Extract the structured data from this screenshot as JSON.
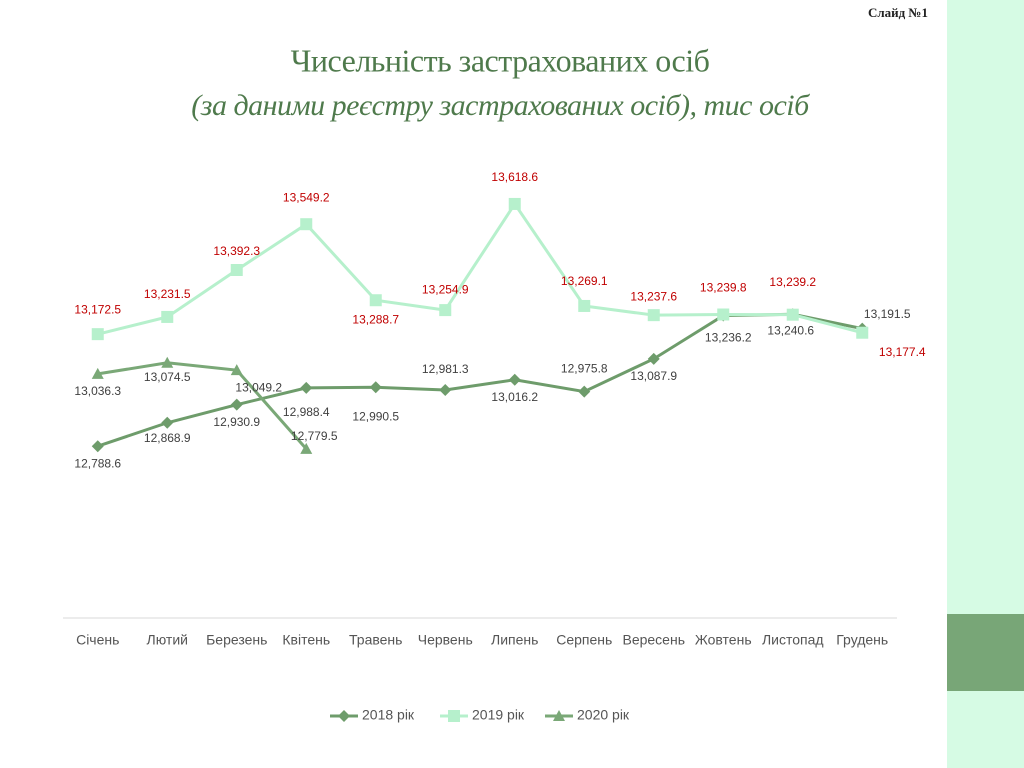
{
  "slide_label": "Слайд №1",
  "chart_data": {
    "type": "line",
    "title": "Чисельність застрахованих осіб",
    "subtitle": "(за даними реєстру застрахованих осіб), тис осіб",
    "categories": [
      "Січень",
      "Лютий",
      "Березень",
      "Квітень",
      "Травень",
      "Червень",
      "Липень",
      "Серпень",
      "Вересень",
      "Жовтень",
      "Листопад",
      "Грудень"
    ],
    "ylim": [
      12200,
      13800
    ],
    "series": [
      {
        "name": "2018 рік",
        "color": "#6e9c6b",
        "marker": "diamond",
        "label_color": "#404040",
        "values": [
          12788.6,
          12868.9,
          12930.9,
          12988.4,
          12990.5,
          12981.3,
          13016.2,
          12975.8,
          13087.9,
          13236.2,
          13240.6,
          13191.5
        ],
        "value_labels": [
          "12,788.6",
          "12,868.9",
          "12,930.9",
          "12,988.4",
          "12,990.5",
          "12,981.3",
          "13,016.2",
          "12,975.8",
          "13,087.9",
          "13,236.2",
          "13,240.6",
          "13,191.5"
        ]
      },
      {
        "name": "2019 рік",
        "color": "#b6f0cc",
        "marker": "square",
        "label_color": "#c00000",
        "values": [
          13172.5,
          13231.5,
          13392.3,
          13549.2,
          13288.7,
          13254.9,
          13618.6,
          13269.1,
          13237.6,
          13239.8,
          13239.2,
          13177.4
        ],
        "value_labels": [
          "13,172.5",
          "13,231.5",
          "13,392.3",
          "13,549.2",
          "13,288.7",
          "13,254.9",
          "13,618.6",
          "13,269.1",
          "13,237.6",
          "13,239.8",
          "13,239.2",
          "13,177.4"
        ]
      },
      {
        "name": "2020 рік",
        "color": "#7aa877",
        "marker": "triangle",
        "label_color": "#404040",
        "values": [
          13036.3,
          13074.5,
          13049.2,
          12779.5,
          null,
          null,
          null,
          null,
          null,
          null,
          null,
          null
        ],
        "value_labels": [
          "13,036.3",
          "13,074.5",
          "13,049.2",
          "12,779.5",
          null,
          null,
          null,
          null,
          null,
          null,
          null,
          null
        ]
      }
    ]
  }
}
